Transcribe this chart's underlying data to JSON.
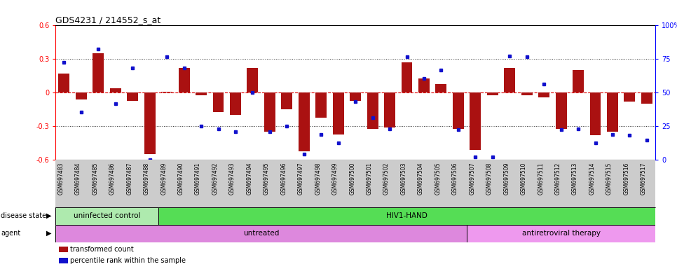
{
  "title": "GDS4231 / 214552_s_at",
  "samples": [
    "GSM697483",
    "GSM697484",
    "GSM697485",
    "GSM697486",
    "GSM697487",
    "GSM697488",
    "GSM697489",
    "GSM697490",
    "GSM697491",
    "GSM697492",
    "GSM697493",
    "GSM697494",
    "GSM697495",
    "GSM697496",
    "GSM697497",
    "GSM697498",
    "GSM697499",
    "GSM697500",
    "GSM697501",
    "GSM697502",
    "GSM697503",
    "GSM697504",
    "GSM697505",
    "GSM697506",
    "GSM697507",
    "GSM697508",
    "GSM697509",
    "GSM697510",
    "GSM697511",
    "GSM697512",
    "GSM697513",
    "GSM697514",
    "GSM697515",
    "GSM697516",
    "GSM697517"
  ],
  "bar_values": [
    0.17,
    -0.06,
    0.35,
    0.04,
    -0.07,
    -0.55,
    0.01,
    0.22,
    -0.02,
    -0.17,
    -0.2,
    0.22,
    -0.35,
    -0.15,
    -0.52,
    -0.22,
    -0.37,
    -0.07,
    -0.32,
    -0.31,
    0.27,
    0.13,
    0.08,
    -0.32,
    -0.51,
    -0.02,
    0.22,
    -0.02,
    -0.04,
    -0.32,
    0.2,
    -0.38,
    -0.35,
    -0.08,
    -0.1
  ],
  "blue_values": [
    0.27,
    -0.17,
    0.39,
    -0.1,
    0.22,
    -0.6,
    0.32,
    0.22,
    -0.3,
    -0.32,
    -0.35,
    0.0,
    -0.35,
    -0.3,
    -0.55,
    -0.37,
    -0.45,
    -0.08,
    -0.22,
    -0.32,
    0.32,
    0.13,
    0.2,
    -0.33,
    -0.57,
    -0.57,
    0.33,
    0.32,
    0.08,
    -0.33,
    -0.32,
    -0.45,
    -0.37,
    -0.38,
    -0.42
  ],
  "disease_state_groups": [
    {
      "label": "uninfected control",
      "start": 0,
      "end": 6,
      "color": "#aeeaae"
    },
    {
      "label": "HIV1-HAND",
      "start": 6,
      "end": 35,
      "color": "#55dd55"
    }
  ],
  "agent_groups": [
    {
      "label": "untreated",
      "start": 0,
      "end": 24,
      "color": "#dd88dd"
    },
    {
      "label": "antiretroviral therapy",
      "start": 24,
      "end": 35,
      "color": "#ee99ee"
    }
  ],
  "bar_color": "#aa1111",
  "blue_color": "#1111cc",
  "ylim_min": -0.6,
  "ylim_max": 0.6,
  "yticks_left": [
    -0.6,
    -0.3,
    0.0,
    0.3,
    0.6
  ],
  "yticks_right_pct": [
    0,
    25,
    50,
    75,
    100
  ],
  "ytick_labels_right": [
    "0",
    "25",
    "50",
    "75",
    "100%"
  ],
  "ytick_labels_left": [
    "-0.6",
    "-0.3",
    "0",
    "0.3",
    "0.6"
  ],
  "hline_color_red": "#dd0000",
  "hline_color_black": "#333333",
  "xticklabel_bg": "#cccccc",
  "legend_items": [
    {
      "label": "transformed count",
      "color": "#aa1111"
    },
    {
      "label": "percentile rank within the sample",
      "color": "#1111cc"
    }
  ]
}
